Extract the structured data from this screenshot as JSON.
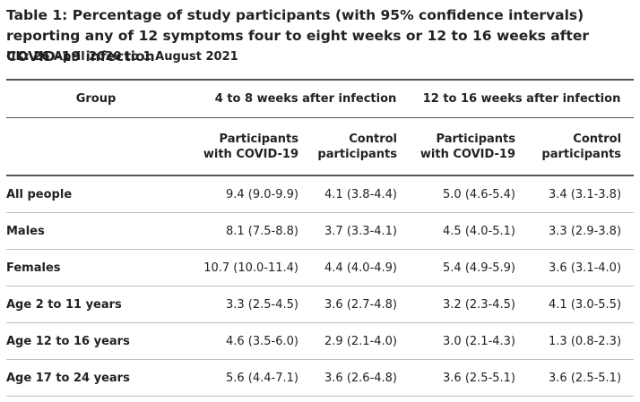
{
  "table": {
    "title": "Table 1: Percentage of study participants (with 95% confidence intervals) reporting any of 12 symptoms four to eight weeks or 12 to 16 weeks after COVID-19 infection",
    "subtitle": "UK: 26 April 2020 to 1 August 2021",
    "header_group": "Group",
    "header_period_1": "4 to 8 weeks after infection",
    "header_period_2": "12 to 16 weeks after infection",
    "sub_covid_line1": "Participants",
    "sub_covid_line2": "with COVID-19",
    "sub_control_line1": "Control",
    "sub_control_line2": "participants",
    "rows": [
      {
        "group": "All people",
        "w4_8_covid": "9.4 (9.0-9.9)",
        "w4_8_control": "4.1 (3.8-4.4)",
        "w12_16_covid": "5.0 (4.6-5.4)",
        "w12_16_control": "3.4 (3.1-3.8)"
      },
      {
        "group": "Males",
        "w4_8_covid": "8.1 (7.5-8.8)",
        "w4_8_control": "3.7 (3.3-4.1)",
        "w12_16_covid": "4.5 (4.0-5.1)",
        "w12_16_control": "3.3 (2.9-3.8)"
      },
      {
        "group": "Females",
        "w4_8_covid": "10.7 (10.0-11.4)",
        "w4_8_control": "4.4 (4.0-4.9)",
        "w12_16_covid": "5.4 (4.9-5.9)",
        "w12_16_control": "3.6 (3.1-4.0)"
      },
      {
        "group": "Age 2 to 11 years",
        "w4_8_covid": "3.3 (2.5-4.5)",
        "w4_8_control": "3.6 (2.7-4.8)",
        "w12_16_covid": "3.2 (2.3-4.5)",
        "w12_16_control": "4.1 (3.0-5.5)"
      },
      {
        "group": "Age 12 to 16 years",
        "w4_8_covid": "4.6 (3.5-6.0)",
        "w4_8_control": "2.9 (2.1-4.0)",
        "w12_16_covid": "3.0 (2.1-4.3)",
        "w12_16_control": "1.3 (0.8-2.3)"
      },
      {
        "group": "Age 17 to 24 years",
        "w4_8_covid": "5.6 (4.4-7.1)",
        "w4_8_control": "3.6 (2.6-4.8)",
        "w12_16_covid": "3.6 (2.5-5.1)",
        "w12_16_control": "3.6 (2.5-5.1)"
      }
    ]
  }
}
